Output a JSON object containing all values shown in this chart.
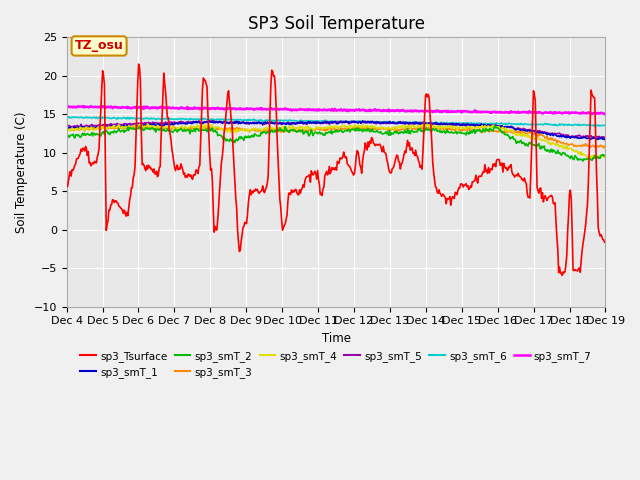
{
  "title": "SP3 Soil Temperature",
  "xlabel": "Time",
  "ylabel": "Soil Temperature (C)",
  "ylim": [
    -10,
    25
  ],
  "xlim": [
    0,
    15
  ],
  "x_tick_labels": [
    "Dec 4",
    "Dec 5",
    "Dec 6",
    "Dec 7",
    "Dec 8",
    "Dec 9",
    "Dec 10",
    "Dec 11",
    "Dec 12",
    "Dec 13",
    "Dec 14",
    "Dec 15",
    "Dec 16",
    "Dec 17",
    "Dec 18",
    "Dec 19"
  ],
  "annotation_text": "TZ_osu",
  "annotation_bbox_facecolor": "#ffffcc",
  "annotation_bbox_edgecolor": "#cc8800",
  "annotation_text_color": "#cc0000",
  "fig_facecolor": "#f0f0f0",
  "plot_bg_color": "#e8e8e8",
  "series": {
    "sp3_Tsurface": {
      "color": "#ff0000",
      "lw": 1.2
    },
    "sp3_smT_1": {
      "color": "#0000cc",
      "lw": 1.2
    },
    "sp3_smT_2": {
      "color": "#00bb00",
      "lw": 1.2
    },
    "sp3_smT_3": {
      "color": "#ff8800",
      "lw": 1.2
    },
    "sp3_smT_4": {
      "color": "#dddd00",
      "lw": 1.2
    },
    "sp3_smT_5": {
      "color": "#9900aa",
      "lw": 1.2
    },
    "sp3_smT_6": {
      "color": "#00cccc",
      "lw": 1.2
    },
    "sp3_smT_7": {
      "color": "#ff00ff",
      "lw": 1.8
    }
  },
  "legend_order": [
    "sp3_Tsurface",
    "sp3_smT_1",
    "sp3_smT_2",
    "sp3_smT_3",
    "sp3_smT_4",
    "sp3_smT_5",
    "sp3_smT_6",
    "sp3_smT_7"
  ]
}
